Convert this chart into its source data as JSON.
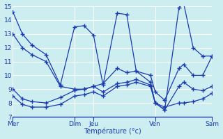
{
  "xlabel": "Température (°c)",
  "bg_color": "#cdeef0",
  "line_color": "#1a3aad",
  "grid_color": "#b0dde0",
  "ylim": [
    7,
    15
  ],
  "yticks": [
    7,
    8,
    9,
    10,
    11,
    12,
    13,
    14,
    15
  ],
  "xlim": [
    0,
    42
  ],
  "day_labels": [
    "Mer",
    "Dim",
    "Jeu",
    "Ven",
    "Sam"
  ],
  "day_positions": [
    0,
    13,
    17,
    30,
    42
  ],
  "series": [
    {
      "x": [
        0,
        2,
        4,
        7,
        10,
        13,
        15,
        17,
        19,
        22,
        24,
        26,
        29,
        30,
        32,
        35,
        36,
        38,
        40,
        42
      ],
      "y": [
        14.6,
        13.0,
        12.2,
        11.5,
        9.3,
        13.5,
        13.6,
        12.9,
        9.3,
        14.5,
        14.4,
        10.3,
        9.5,
        8.0,
        7.5,
        14.9,
        15.2,
        12.0,
        11.4,
        11.4
      ]
    },
    {
      "x": [
        0,
        2,
        4,
        7,
        10,
        13,
        15,
        17,
        19,
        22,
        24,
        26,
        29,
        30,
        32,
        35,
        36,
        38,
        40,
        42
      ],
      "y": [
        13.0,
        12.0,
        11.5,
        11.0,
        9.2,
        9.0,
        9.0,
        9.2,
        9.4,
        10.5,
        10.2,
        10.3,
        10.0,
        8.8,
        8.2,
        10.5,
        10.8,
        10.0,
        10.0,
        11.4
      ]
    },
    {
      "x": [
        0,
        2,
        4,
        7,
        10,
        13,
        15,
        17,
        19,
        22,
        24,
        26,
        29,
        30,
        32,
        35,
        36,
        38,
        40,
        42
      ],
      "y": [
        9.0,
        8.3,
        8.1,
        8.0,
        8.4,
        8.9,
        9.0,
        9.2,
        8.8,
        9.4,
        9.5,
        9.7,
        9.3,
        8.0,
        7.7,
        8.0,
        8.0,
        8.1,
        8.3,
        8.7
      ]
    },
    {
      "x": [
        0,
        2,
        4,
        7,
        10,
        13,
        15,
        17,
        19,
        22,
        24,
        26,
        29,
        30,
        32,
        35,
        36,
        38,
        40,
        42
      ],
      "y": [
        8.5,
        7.9,
        7.7,
        7.7,
        7.9,
        8.5,
        8.6,
        8.8,
        8.5,
        9.2,
        9.3,
        9.5,
        9.2,
        8.0,
        7.5,
        9.2,
        9.5,
        9.0,
        8.9,
        9.2
      ]
    }
  ]
}
